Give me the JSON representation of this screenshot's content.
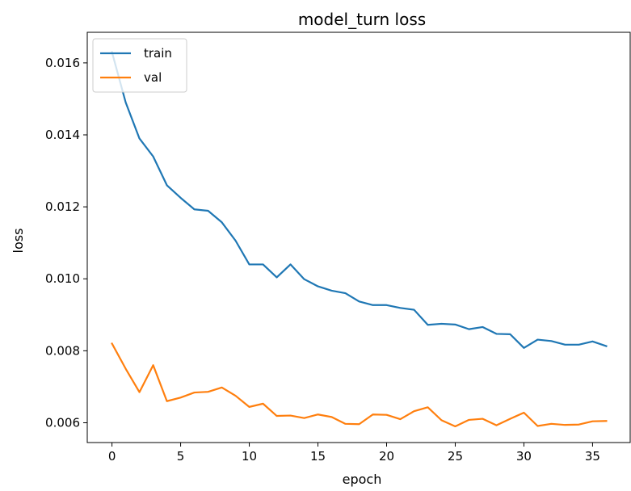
{
  "chart_data": {
    "type": "line",
    "title": "model_turn loss",
    "xlabel": "epoch",
    "ylabel": "loss",
    "xlim": [
      -1.8,
      37.8
    ],
    "ylim": [
      0.00545,
      0.01685
    ],
    "x_ticks": [
      0,
      5,
      10,
      15,
      20,
      25,
      30,
      35
    ],
    "x_tick_labels": [
      "0",
      "5",
      "10",
      "15",
      "20",
      "25",
      "30",
      "35"
    ],
    "y_ticks": [
      0.006,
      0.008,
      0.01,
      0.012,
      0.014,
      0.016
    ],
    "y_tick_labels": [
      "0.006",
      "0.008",
      "0.010",
      "0.012",
      "0.014",
      "0.016"
    ],
    "grid": false,
    "legend_position": "upper left",
    "x": [
      0,
      1,
      2,
      3,
      4,
      5,
      6,
      7,
      8,
      9,
      10,
      11,
      12,
      13,
      14,
      15,
      16,
      17,
      18,
      19,
      20,
      21,
      22,
      23,
      24,
      25,
      26,
      27,
      28,
      29,
      30,
      31,
      32,
      33,
      34,
      35,
      36
    ],
    "series": [
      {
        "name": "train",
        "color": "#1f77b4",
        "values": [
          0.0163,
          0.0149,
          0.0139,
          0.0134,
          0.0126,
          0.01225,
          0.01193,
          0.01189,
          0.01157,
          0.01106,
          0.0104,
          0.0104,
          0.01004,
          0.0104,
          0.00999,
          0.00979,
          0.00967,
          0.0096,
          0.00937,
          0.00927,
          0.00927,
          0.00919,
          0.00914,
          0.00872,
          0.00875,
          0.00873,
          0.0086,
          0.00866,
          0.00847,
          0.00846,
          0.00808,
          0.00831,
          0.00827,
          0.00817,
          0.00817,
          0.00826,
          0.00813
        ]
      },
      {
        "name": "val",
        "color": "#ff7f0e",
        "values": [
          0.0082,
          0.0075,
          0.00685,
          0.0076,
          0.0066,
          0.0067,
          0.00684,
          0.00686,
          0.00698,
          0.00675,
          0.00644,
          0.00653,
          0.00619,
          0.0062,
          0.00613,
          0.00623,
          0.00616,
          0.00597,
          0.00596,
          0.00623,
          0.00622,
          0.0061,
          0.00632,
          0.00643,
          0.00607,
          0.0059,
          0.00608,
          0.00611,
          0.00593,
          0.00611,
          0.00628,
          0.00591,
          0.00597,
          0.00594,
          0.00595,
          0.00604,
          0.00605
        ]
      }
    ]
  }
}
